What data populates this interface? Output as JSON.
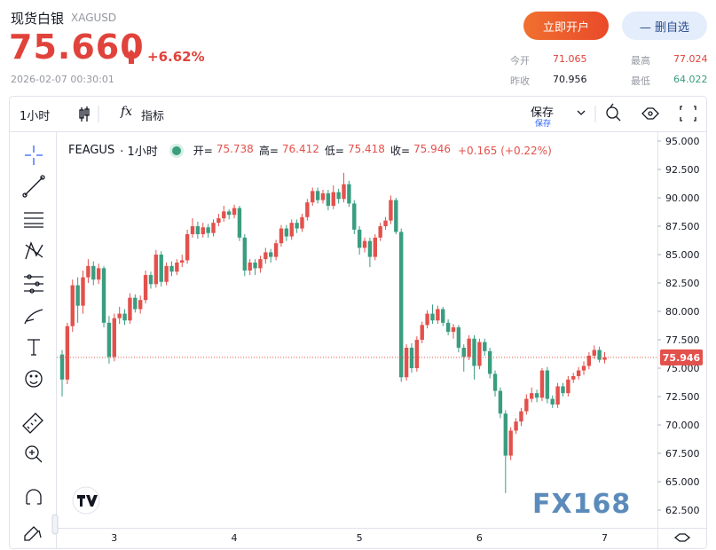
{
  "header": {
    "title": "现货白银",
    "symbol": "XAGUSD",
    "price": "75.660",
    "change_pct": "+6.62%",
    "timestamp": "2026-02-07 00:30:01"
  },
  "buttons": {
    "open_account": "立即开户",
    "remove_watch": "— 删自选"
  },
  "stats": {
    "open_label": "今开",
    "open": "71.065",
    "high_label": "最高",
    "high": "77.024",
    "prev_close_label": "昨收",
    "prev_close": "70.956",
    "low_label": "最低",
    "low": "64.022"
  },
  "toolbar": {
    "interval": "1小时",
    "fx": "fx",
    "indicators": "指标",
    "save": "保存",
    "save_sub": "保存"
  },
  "chart_data": {
    "type": "candlestick",
    "title": "FEAGUS",
    "interval": "· 1小时",
    "legend": [
      {
        "label": "开=",
        "value": "75.738"
      },
      {
        "label": "高=",
        "value": "76.412"
      },
      {
        "label": "低=",
        "value": "75.418"
      },
      {
        "label": "收=",
        "value": "75.946"
      }
    ],
    "change": "+0.165 (+0.22%)",
    "watermark": "FX168",
    "up_color": "#e3514c",
    "down_color": "#3a9d80",
    "last_price": 75.946,
    "ylim": [
      60.94,
      95.86
    ],
    "yticks": [
      {
        "value": 95,
        "label": "95.000"
      },
      {
        "value": 92.5,
        "label": "92.500"
      },
      {
        "value": 90,
        "label": "90.000"
      },
      {
        "value": 87.5,
        "label": "87.500"
      },
      {
        "value": 85,
        "label": "85.000"
      },
      {
        "value": 82.5,
        "label": "82.500"
      },
      {
        "value": 80,
        "label": "80.000"
      },
      {
        "value": 77.5,
        "label": "77.500"
      },
      {
        "value": 75,
        "label": "75.000"
      },
      {
        "value": 72.5,
        "label": "72.500"
      },
      {
        "value": 70,
        "label": "70.000"
      },
      {
        "value": 67.5,
        "label": "67.500"
      },
      {
        "value": 65,
        "label": "65.000"
      },
      {
        "value": 62.5,
        "label": "62.500"
      }
    ],
    "categories": [
      null,
      null,
      null,
      null,
      null,
      null,
      null,
      null,
      null,
      null,
      "3",
      null,
      null,
      null,
      null,
      null,
      null,
      null,
      null,
      null,
      null,
      null,
      null,
      null,
      null,
      null,
      null,
      null,
      null,
      null,
      null,
      null,
      null,
      "4",
      null,
      null,
      null,
      null,
      null,
      null,
      null,
      null,
      null,
      null,
      null,
      null,
      null,
      null,
      null,
      null,
      null,
      null,
      null,
      null,
      null,
      null,
      null,
      "5",
      null,
      null,
      null,
      null,
      null,
      null,
      null,
      null,
      null,
      null,
      null,
      null,
      null,
      null,
      null,
      null,
      null,
      null,
      null,
      null,
      null,
      null,
      "6",
      null,
      null,
      null,
      null,
      null,
      null,
      null,
      null,
      null,
      null,
      null,
      null,
      null,
      null,
      null,
      null,
      null,
      null,
      null,
      null,
      null,
      null,
      null,
      "7"
    ],
    "ohlc": [
      [
        76.2,
        76.6,
        72.5,
        74.0
      ],
      [
        74.0,
        79.0,
        73.6,
        78.7
      ],
      [
        78.7,
        82.8,
        78.2,
        82.3
      ],
      [
        82.3,
        83.0,
        79.0,
        80.5
      ],
      [
        80.5,
        83.6,
        79.8,
        83.0
      ],
      [
        83.0,
        84.6,
        82.5,
        84.0
      ],
      [
        84.0,
        84.4,
        82.3,
        82.8
      ],
      [
        82.8,
        84.2,
        82.4,
        83.8
      ],
      [
        83.8,
        84.0,
        78.6,
        79.0
      ],
      [
        79.0,
        79.6,
        75.4,
        76.0
      ],
      [
        76.0,
        79.8,
        75.6,
        79.4
      ],
      [
        79.4,
        80.4,
        78.9,
        79.8
      ],
      [
        79.8,
        80.2,
        78.8,
        79.2
      ],
      [
        79.2,
        81.6,
        78.9,
        81.2
      ],
      [
        81.2,
        81.5,
        79.9,
        80.2
      ],
      [
        80.2,
        81.4,
        79.8,
        81.0
      ],
      [
        81.0,
        83.6,
        80.7,
        83.2
      ],
      [
        83.2,
        83.5,
        82.0,
        82.4
      ],
      [
        82.4,
        85.4,
        82.1,
        85.0
      ],
      [
        85.0,
        85.3,
        82.2,
        82.6
      ],
      [
        82.6,
        84.3,
        82.3,
        84.0
      ],
      [
        84.0,
        84.4,
        83.1,
        83.5
      ],
      [
        83.5,
        84.6,
        83.2,
        84.3
      ],
      [
        84.3,
        85.0,
        83.9,
        84.5
      ],
      [
        84.5,
        87.2,
        84.2,
        86.8
      ],
      [
        86.8,
        88.2,
        86.5,
        87.5
      ],
      [
        87.5,
        87.9,
        86.4,
        86.8
      ],
      [
        86.8,
        87.8,
        86.5,
        87.4
      ],
      [
        87.4,
        87.7,
        86.5,
        86.9
      ],
      [
        86.9,
        88.1,
        86.6,
        87.8
      ],
      [
        87.8,
        88.6,
        87.5,
        88.2
      ],
      [
        88.2,
        89.3,
        87.9,
        88.8
      ],
      [
        88.8,
        89.0,
        88.1,
        88.5
      ],
      [
        88.5,
        89.4,
        88.2,
        89.1
      ],
      [
        89.1,
        89.3,
        86.2,
        86.5
      ],
      [
        86.5,
        86.8,
        83.1,
        83.6
      ],
      [
        83.6,
        84.6,
        83.2,
        84.3
      ],
      [
        84.3,
        84.6,
        83.2,
        83.8
      ],
      [
        83.8,
        84.9,
        83.4,
        84.6
      ],
      [
        84.6,
        85.6,
        84.2,
        85.2
      ],
      [
        85.2,
        85.5,
        84.3,
        84.8
      ],
      [
        84.8,
        86.3,
        84.5,
        86.0
      ],
      [
        86.0,
        87.6,
        85.7,
        87.3
      ],
      [
        87.3,
        87.6,
        86.2,
        86.6
      ],
      [
        86.6,
        88.1,
        86.3,
        87.8
      ],
      [
        87.8,
        88.1,
        86.9,
        87.3
      ],
      [
        87.3,
        88.6,
        87.0,
        88.3
      ],
      [
        88.3,
        89.9,
        88.0,
        89.6
      ],
      [
        89.6,
        90.9,
        89.3,
        90.6
      ],
      [
        90.6,
        90.9,
        89.5,
        89.8
      ],
      [
        89.8,
        90.7,
        89.5,
        90.4
      ],
      [
        90.4,
        90.7,
        88.9,
        89.3
      ],
      [
        89.3,
        91.1,
        89.0,
        90.5
      ],
      [
        90.5,
        90.8,
        89.5,
        89.9
      ],
      [
        89.9,
        92.2,
        89.6,
        91.2
      ],
      [
        91.2,
        91.5,
        89.2,
        89.5
      ],
      [
        89.5,
        89.8,
        86.8,
        87.2
      ],
      [
        87.2,
        87.5,
        85.0,
        85.6
      ],
      [
        85.6,
        86.5,
        85.2,
        86.2
      ],
      [
        86.2,
        86.5,
        83.9,
        84.8
      ],
      [
        84.8,
        86.8,
        84.5,
        86.5
      ],
      [
        86.5,
        87.8,
        86.2,
        87.5
      ],
      [
        87.5,
        88.3,
        87.2,
        88.0
      ],
      [
        88.0,
        90.2,
        87.7,
        89.8
      ],
      [
        89.8,
        90.0,
        86.8,
        87.0
      ],
      [
        87.0,
        87.3,
        73.8,
        74.2
      ],
      [
        74.2,
        77.1,
        73.9,
        76.8
      ],
      [
        76.8,
        77.2,
        74.6,
        75.0
      ],
      [
        75.0,
        77.8,
        74.7,
        77.5
      ],
      [
        77.5,
        79.1,
        77.2,
        78.8
      ],
      [
        78.8,
        80.1,
        78.5,
        79.8
      ],
      [
        79.8,
        80.6,
        78.9,
        79.2
      ],
      [
        79.2,
        80.5,
        78.9,
        80.2
      ],
      [
        80.2,
        80.4,
        78.7,
        79.0
      ],
      [
        79.0,
        79.3,
        77.9,
        78.2
      ],
      [
        78.2,
        78.9,
        77.6,
        78.6
      ],
      [
        78.6,
        78.8,
        76.4,
        76.8
      ],
      [
        76.8,
        77.1,
        74.7,
        76.0
      ],
      [
        76.0,
        77.9,
        75.7,
        77.6
      ],
      [
        77.6,
        77.9,
        74.0,
        75.2
      ],
      [
        75.2,
        77.6,
        74.9,
        77.3
      ],
      [
        77.3,
        77.6,
        76.1,
        76.5
      ],
      [
        76.5,
        76.8,
        74.1,
        74.5
      ],
      [
        74.5,
        74.8,
        72.5,
        73.0
      ],
      [
        73.0,
        73.3,
        70.6,
        71.0
      ],
      [
        71.0,
        71.3,
        64.0,
        67.3
      ],
      [
        67.3,
        69.8,
        66.9,
        69.5
      ],
      [
        69.5,
        70.6,
        69.2,
        70.3
      ],
      [
        70.3,
        71.5,
        69.9,
        71.2
      ],
      [
        71.2,
        72.7,
        70.9,
        72.3
      ],
      [
        72.3,
        73.3,
        72.0,
        72.8
      ],
      [
        72.8,
        73.1,
        72.0,
        72.4
      ],
      [
        72.4,
        75.0,
        72.1,
        74.8
      ],
      [
        74.8,
        75.1,
        71.9,
        72.3
      ],
      [
        72.3,
        72.6,
        71.5,
        71.8
      ],
      [
        71.8,
        73.7,
        71.5,
        73.4
      ],
      [
        73.4,
        73.7,
        72.5,
        72.8
      ],
      [
        72.8,
        74.3,
        72.5,
        74.0
      ],
      [
        74.0,
        74.6,
        73.7,
        74.3
      ],
      [
        74.3,
        75.1,
        74.0,
        74.8
      ],
      [
        74.8,
        75.6,
        74.4,
        75.2
      ],
      [
        75.2,
        76.4,
        74.9,
        76.1
      ],
      [
        76.1,
        77.0,
        75.8,
        76.6
      ],
      [
        76.6,
        76.9,
        75.5,
        75.738
      ],
      [
        75.738,
        76.412,
        75.418,
        75.946
      ]
    ]
  }
}
